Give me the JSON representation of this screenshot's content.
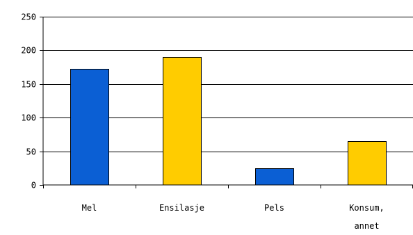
{
  "chart_data": {
    "type": "bar",
    "title": "",
    "xlabel": "",
    "ylabel": "",
    "ylim": [
      0,
      250
    ],
    "yticks": [
      0,
      50,
      100,
      150,
      200,
      250
    ],
    "grid": true,
    "legend": "none",
    "categories": [
      {
        "lines": [
          "Mel"
        ]
      },
      {
        "lines": [
          "Ensilasje"
        ]
      },
      {
        "lines": [
          "Pels"
        ]
      },
      {
        "lines": [
          "Konsum,",
          "annet"
        ]
      }
    ],
    "values": [
      173,
      190,
      25,
      65
    ],
    "bar_colors": [
      "#0b5fd4",
      "#ffcc00",
      "#0b5fd4",
      "#ffcc00"
    ]
  }
}
